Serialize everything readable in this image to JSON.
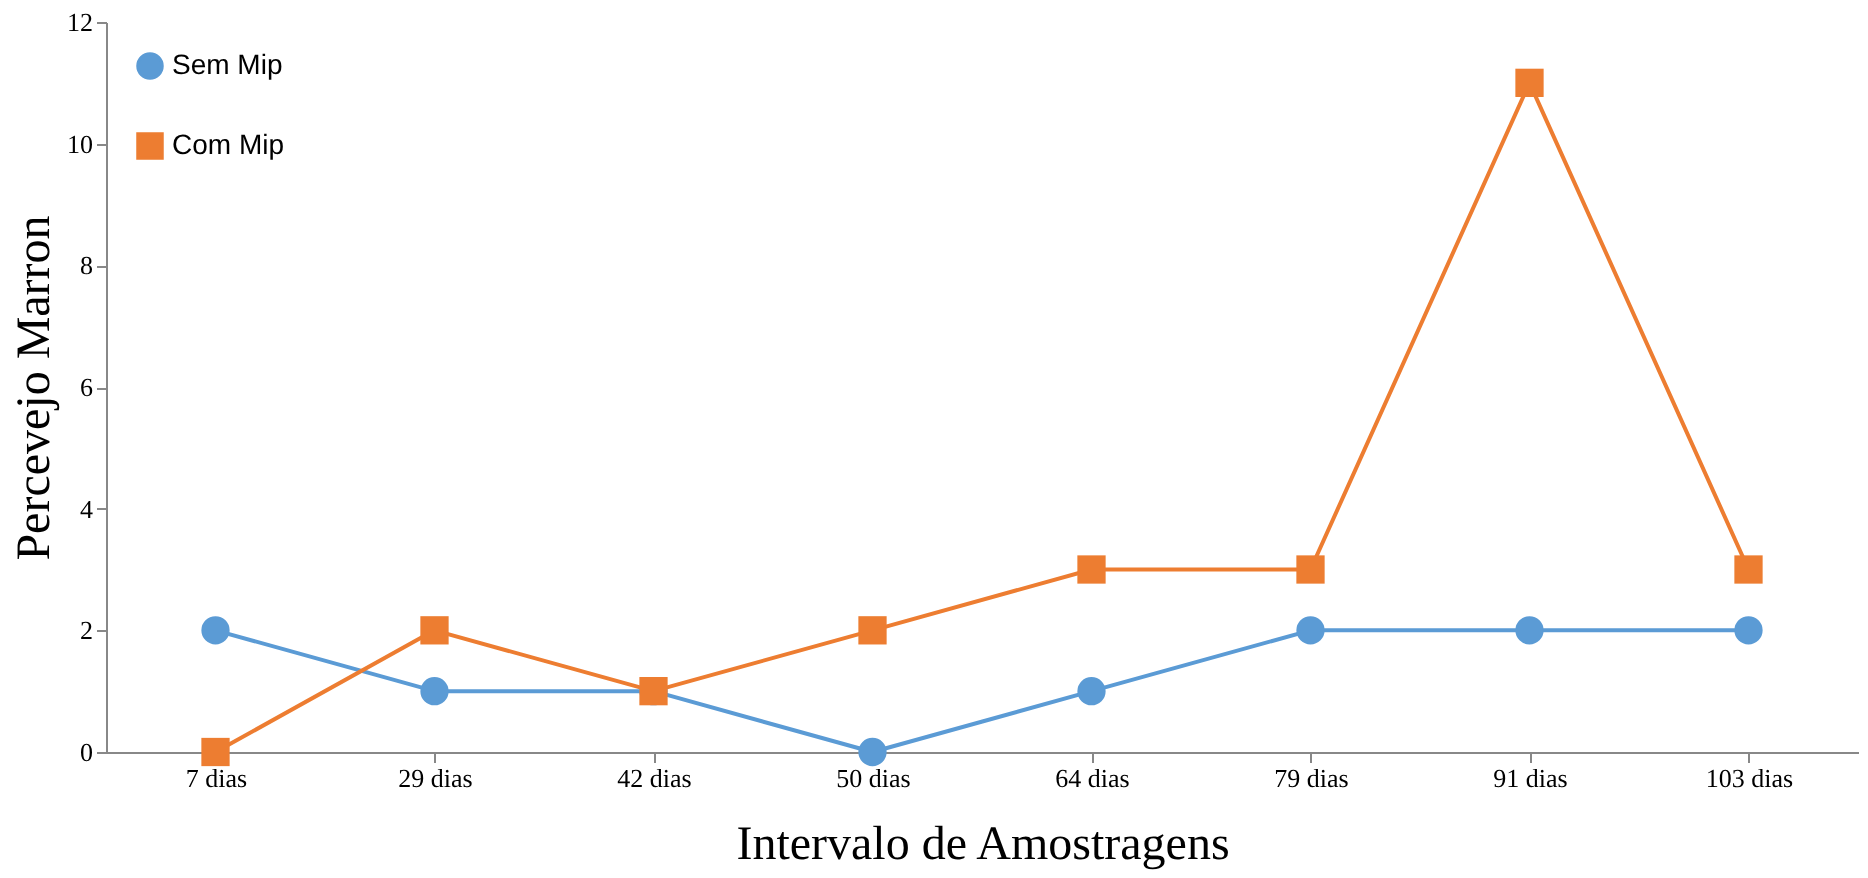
{
  "chart_data": {
    "type": "line",
    "xlabel": "Intervalo de Amostragens",
    "ylabel": "Percevejo Marron",
    "categories": [
      "7 dias",
      "29 dias",
      "42 dias",
      "50 dias",
      "64 dias",
      "79 dias",
      "91 dias",
      "103 dias"
    ],
    "series": [
      {
        "name": "Sem Mip",
        "color": "#5b9bd5",
        "marker": "circle",
        "values": [
          2,
          1,
          1,
          0,
          1,
          2,
          2,
          2
        ]
      },
      {
        "name": "Com Mip",
        "color": "#ed7d31",
        "marker": "square",
        "values": [
          0,
          2,
          1,
          2,
          3,
          3,
          11,
          3
        ]
      }
    ],
    "ylim": [
      0,
      12
    ],
    "yticks": [
      0,
      2,
      4,
      6,
      8,
      10,
      12
    ],
    "grid": false,
    "legend": "top left",
    "line_style": "solid"
  }
}
